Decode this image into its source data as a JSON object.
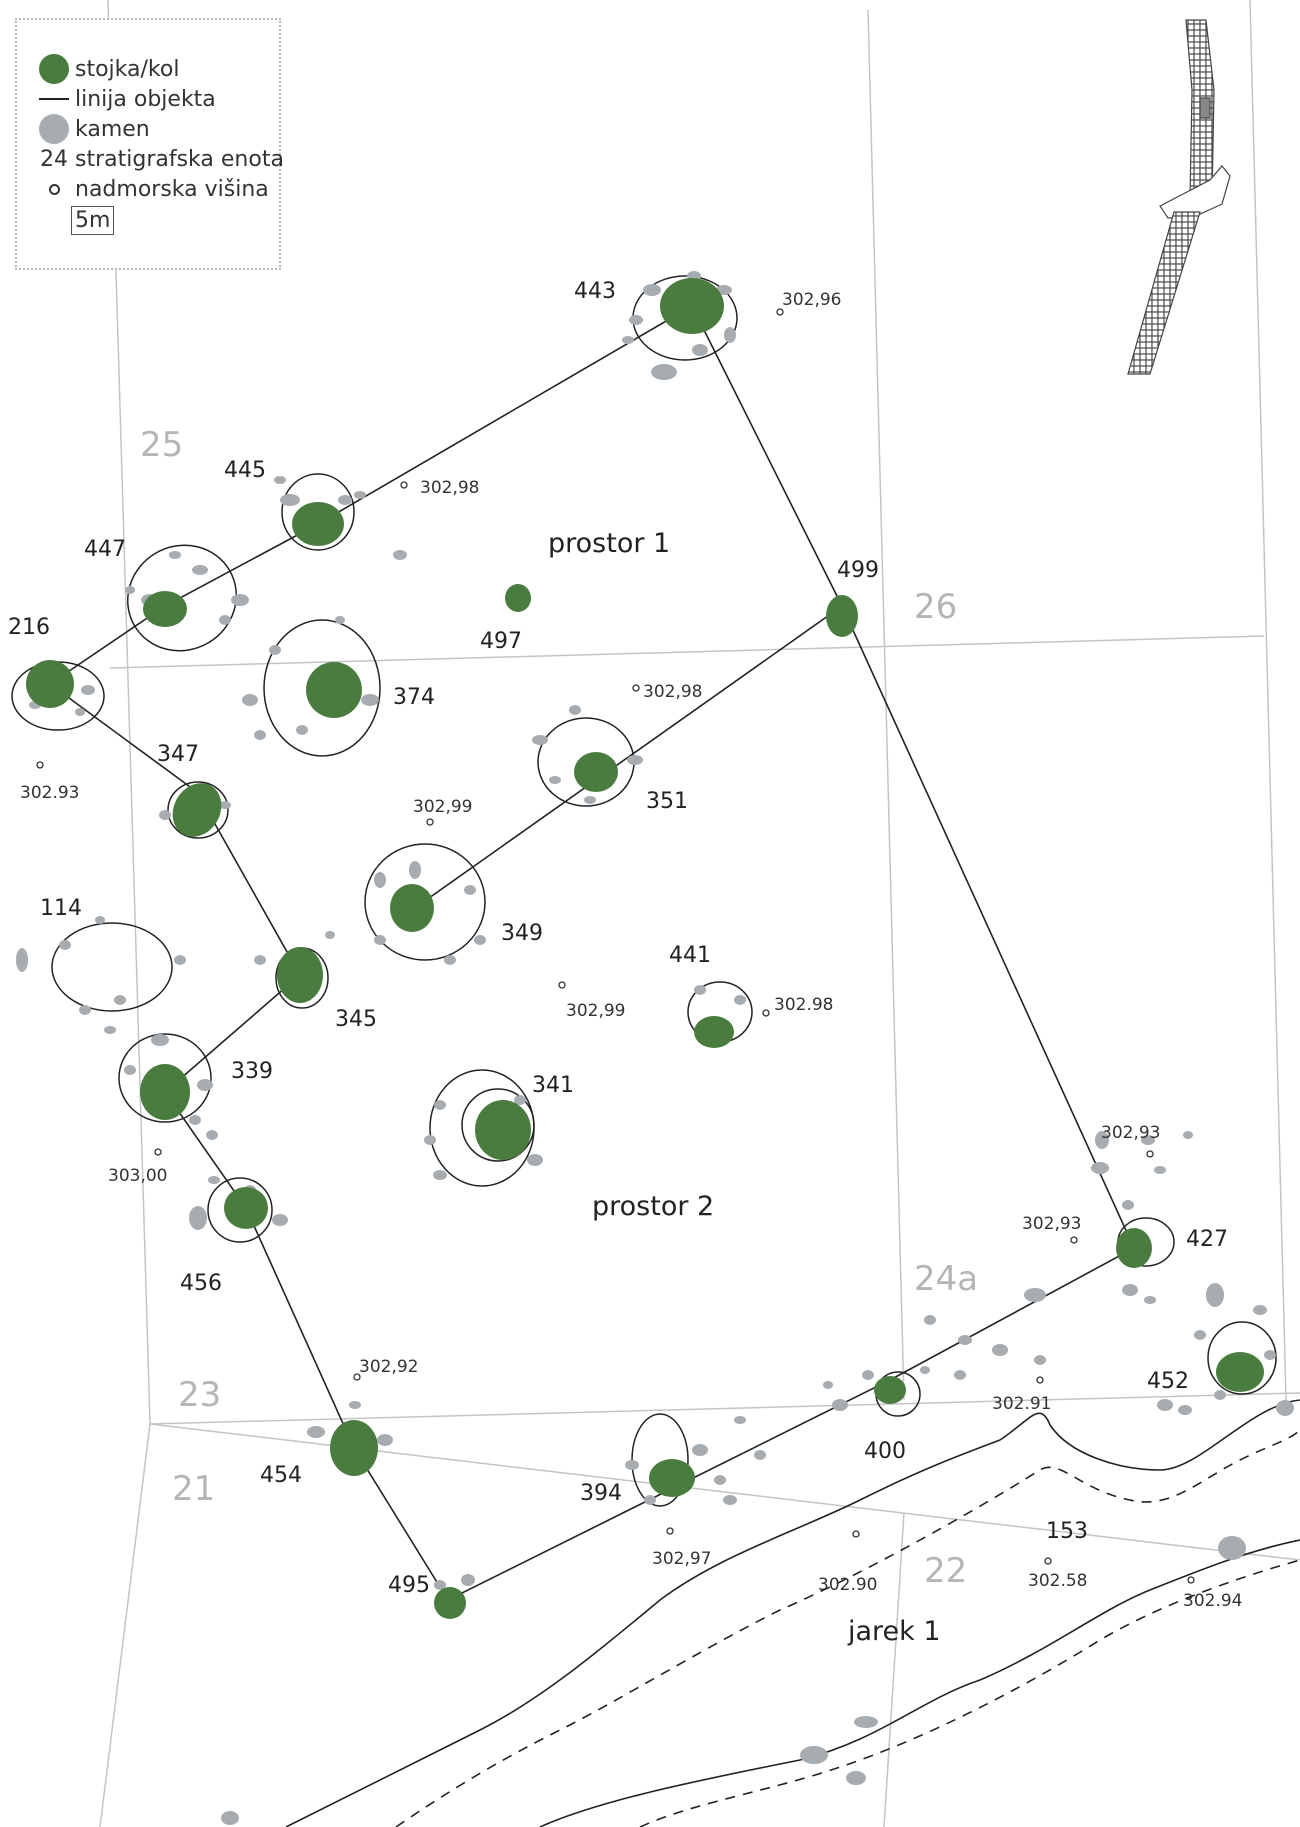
{
  "legend": {
    "items": [
      {
        "symbol": "green-dot",
        "label": "stojka/kol"
      },
      {
        "symbol": "line",
        "label": "linija objekta"
      },
      {
        "symbol": "grey-dot",
        "label": "kamen"
      },
      {
        "symbol": "number",
        "sample": "24",
        "label": "stratigrafska enota"
      },
      {
        "symbol": "small-circle",
        "label": "nadmorska višina"
      }
    ],
    "scale": "5m"
  },
  "colors": {
    "post": "#4a7c3f",
    "stone": "#a7acb0",
    "grid_label": "#b5b5b5",
    "line": "#222222"
  },
  "grid_squares": [
    "25",
    "26",
    "24a",
    "23",
    "21",
    "22"
  ],
  "spaces": [
    "prostor 1",
    "prostor 2"
  ],
  "ditch": "jarek 1",
  "features": [
    "443",
    "445",
    "447",
    "216",
    "497",
    "499",
    "374",
    "347",
    "351",
    "349",
    "114",
    "441",
    "345",
    "339",
    "341",
    "456",
    "427",
    "452",
    "454",
    "400",
    "394",
    "495",
    "153"
  ],
  "elevations": [
    "302,96",
    "302,98",
    "302,98",
    "302.93",
    "302,99",
    "302,99",
    "302.98",
    "303,00",
    "302,93",
    "302,93",
    "302,92",
    "302.91",
    "302,97",
    "302.90",
    "302.58",
    "302.94"
  ]
}
